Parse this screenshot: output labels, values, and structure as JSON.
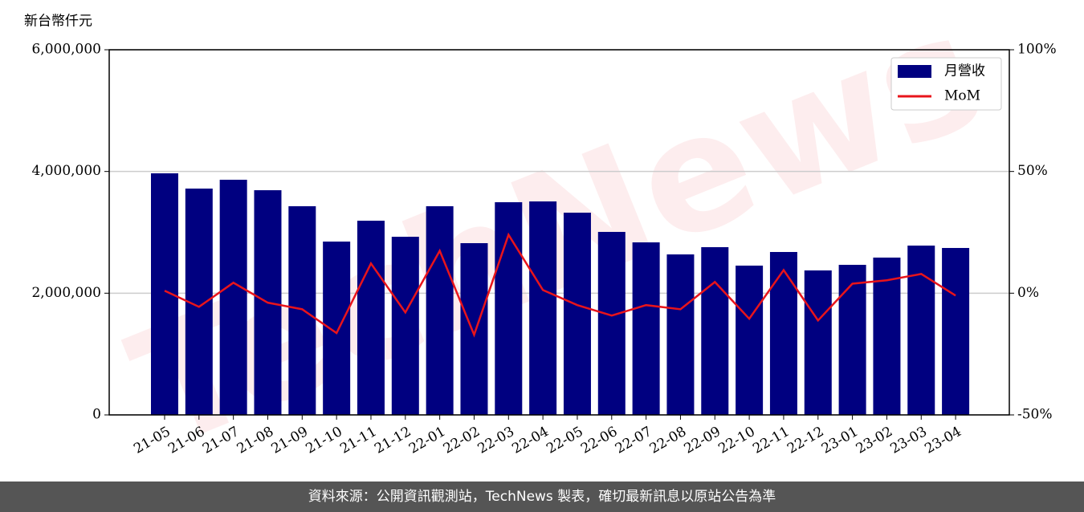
{
  "chart_data": {
    "type": "bar",
    "unit_label": "新台幣仟元",
    "watermark": "TechNews",
    "categories": [
      "21-05",
      "21-06",
      "21-07",
      "21-08",
      "21-09",
      "21-10",
      "21-11",
      "21-12",
      "22-01",
      "22-02",
      "22-03",
      "22-04",
      "22-05",
      "22-06",
      "22-07",
      "22-08",
      "22-09",
      "22-10",
      "22-11",
      "22-12",
      "23-01",
      "23-02",
      "23-03",
      "23-04"
    ],
    "series": [
      {
        "name": "月營收",
        "type": "bar",
        "color": "#000080",
        "values": [
          3970000,
          3719000,
          3864000,
          3692000,
          3429000,
          2848000,
          3191000,
          2927000,
          3429000,
          2822000,
          3495000,
          3508000,
          3323000,
          3007000,
          2835000,
          2637000,
          2756000,
          2453000,
          2677000,
          2374000,
          2466000,
          2585000,
          2782000,
          2743000
        ]
      },
      {
        "name": "MoM",
        "type": "line",
        "axis": "y2",
        "color": "#e8141b",
        "values": [
          1,
          -5.6,
          4.3,
          -3.9,
          -6.6,
          -16.4,
          12.2,
          -7.9,
          17.4,
          -17.1,
          24,
          1.3,
          -4.9,
          -9.2,
          -4.9,
          -6.6,
          4.6,
          -10.5,
          9.5,
          -11.2,
          3.9,
          5.3,
          7.9,
          -1.0
        ]
      }
    ],
    "ylim": [
      0,
      6000000
    ],
    "yticks": [
      0,
      {
        "value": 2000000,
        "label": "2,000,000"
      },
      {
        "value": 4000000,
        "label": "4,000,000"
      },
      {
        "value": 6000000,
        "label": "6,000,000"
      }
    ],
    "y2lim": [
      -50,
      100
    ],
    "y2ticks": [
      {
        "value": -50,
        "label": "-50%"
      },
      {
        "value": 0,
        "label": "0%"
      },
      {
        "value": 50,
        "label": "50%"
      },
      {
        "value": 100,
        "label": "100%"
      }
    ],
    "grid": true,
    "legend": "upper right",
    "footer": "資料來源：公開資訊觀測站，TechNews 製表，確切最新訊息以原站公告為準"
  }
}
